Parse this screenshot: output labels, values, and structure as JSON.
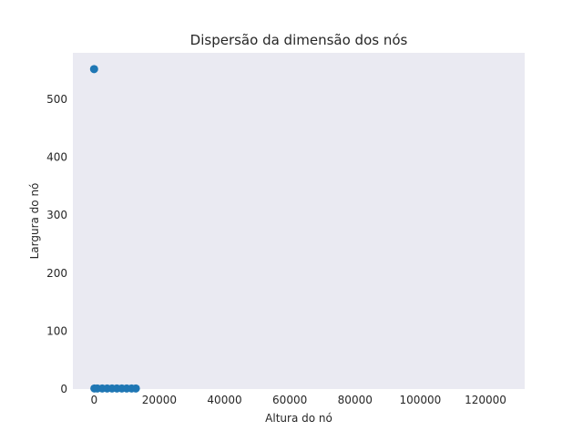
{
  "chart_data": {
    "type": "scatter",
    "title": "Dispersão da dimensão dos nós",
    "xlabel": "Altura do nó",
    "ylabel": "Largura do nó",
    "xlim": [
      -6500,
      132000
    ],
    "ylim": [
      0,
      580
    ],
    "x_ticks": [
      0,
      20000,
      40000,
      60000,
      80000,
      100000,
      120000
    ],
    "y_ticks": [
      0,
      100,
      200,
      300,
      400,
      500
    ],
    "grid": false,
    "background_color": "#eaeaf2",
    "series": [
      {
        "color": "#1f77b4",
        "points": [
          {
            "x": 0,
            "y": 552
          },
          {
            "x": 100,
            "y": 1
          },
          {
            "x": 1000,
            "y": 1
          },
          {
            "x": 2500,
            "y": 1
          },
          {
            "x": 4000,
            "y": 1
          },
          {
            "x": 5500,
            "y": 1
          },
          {
            "x": 7000,
            "y": 1
          },
          {
            "x": 8500,
            "y": 1
          },
          {
            "x": 10000,
            "y": 1
          },
          {
            "x": 11500,
            "y": 1
          },
          {
            "x": 12800,
            "y": 1
          }
        ]
      }
    ]
  }
}
